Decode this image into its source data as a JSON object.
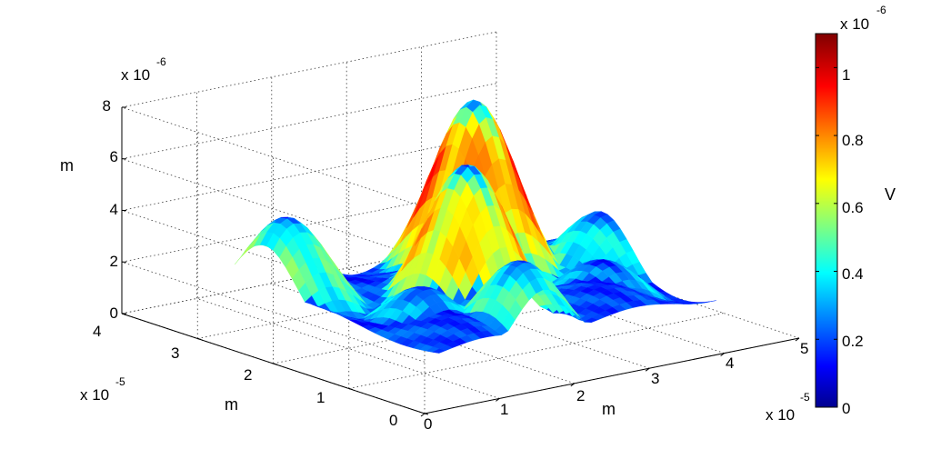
{
  "chart_data": {
    "type": "surface",
    "x_axis": {
      "label": "m",
      "exponent_label": "x 10",
      "exponent": "-5",
      "ticks": [
        "0",
        "1",
        "2",
        "3",
        "4",
        "5"
      ],
      "range": [
        0,
        5
      ]
    },
    "y_axis": {
      "label": "m",
      "exponent_label": "x 10",
      "exponent": "-5",
      "ticks": [
        "0",
        "1",
        "2",
        "3",
        "4"
      ],
      "range": [
        0,
        4
      ]
    },
    "z_axis": {
      "label": "m",
      "exponent_label": "x 10",
      "exponent": "-6",
      "ticks": [
        "0",
        "2",
        "4",
        "6",
        "8"
      ],
      "range": [
        0,
        8
      ]
    },
    "colorbar": {
      "label": "V",
      "exponent_label": "x 10",
      "exponent": "-6",
      "ticks": [
        "0",
        "0.2",
        "0.4",
        "0.6",
        "0.8",
        "1"
      ],
      "range": [
        0,
        1.1
      ],
      "colormap": "jet"
    },
    "grid": true,
    "colors": {
      "jet": [
        "#00008f",
        "#0000ff",
        "#0080ff",
        "#00ffff",
        "#80ff80",
        "#ffff00",
        "#ff8000",
        "#ff0000",
        "#800000"
      ]
    }
  }
}
